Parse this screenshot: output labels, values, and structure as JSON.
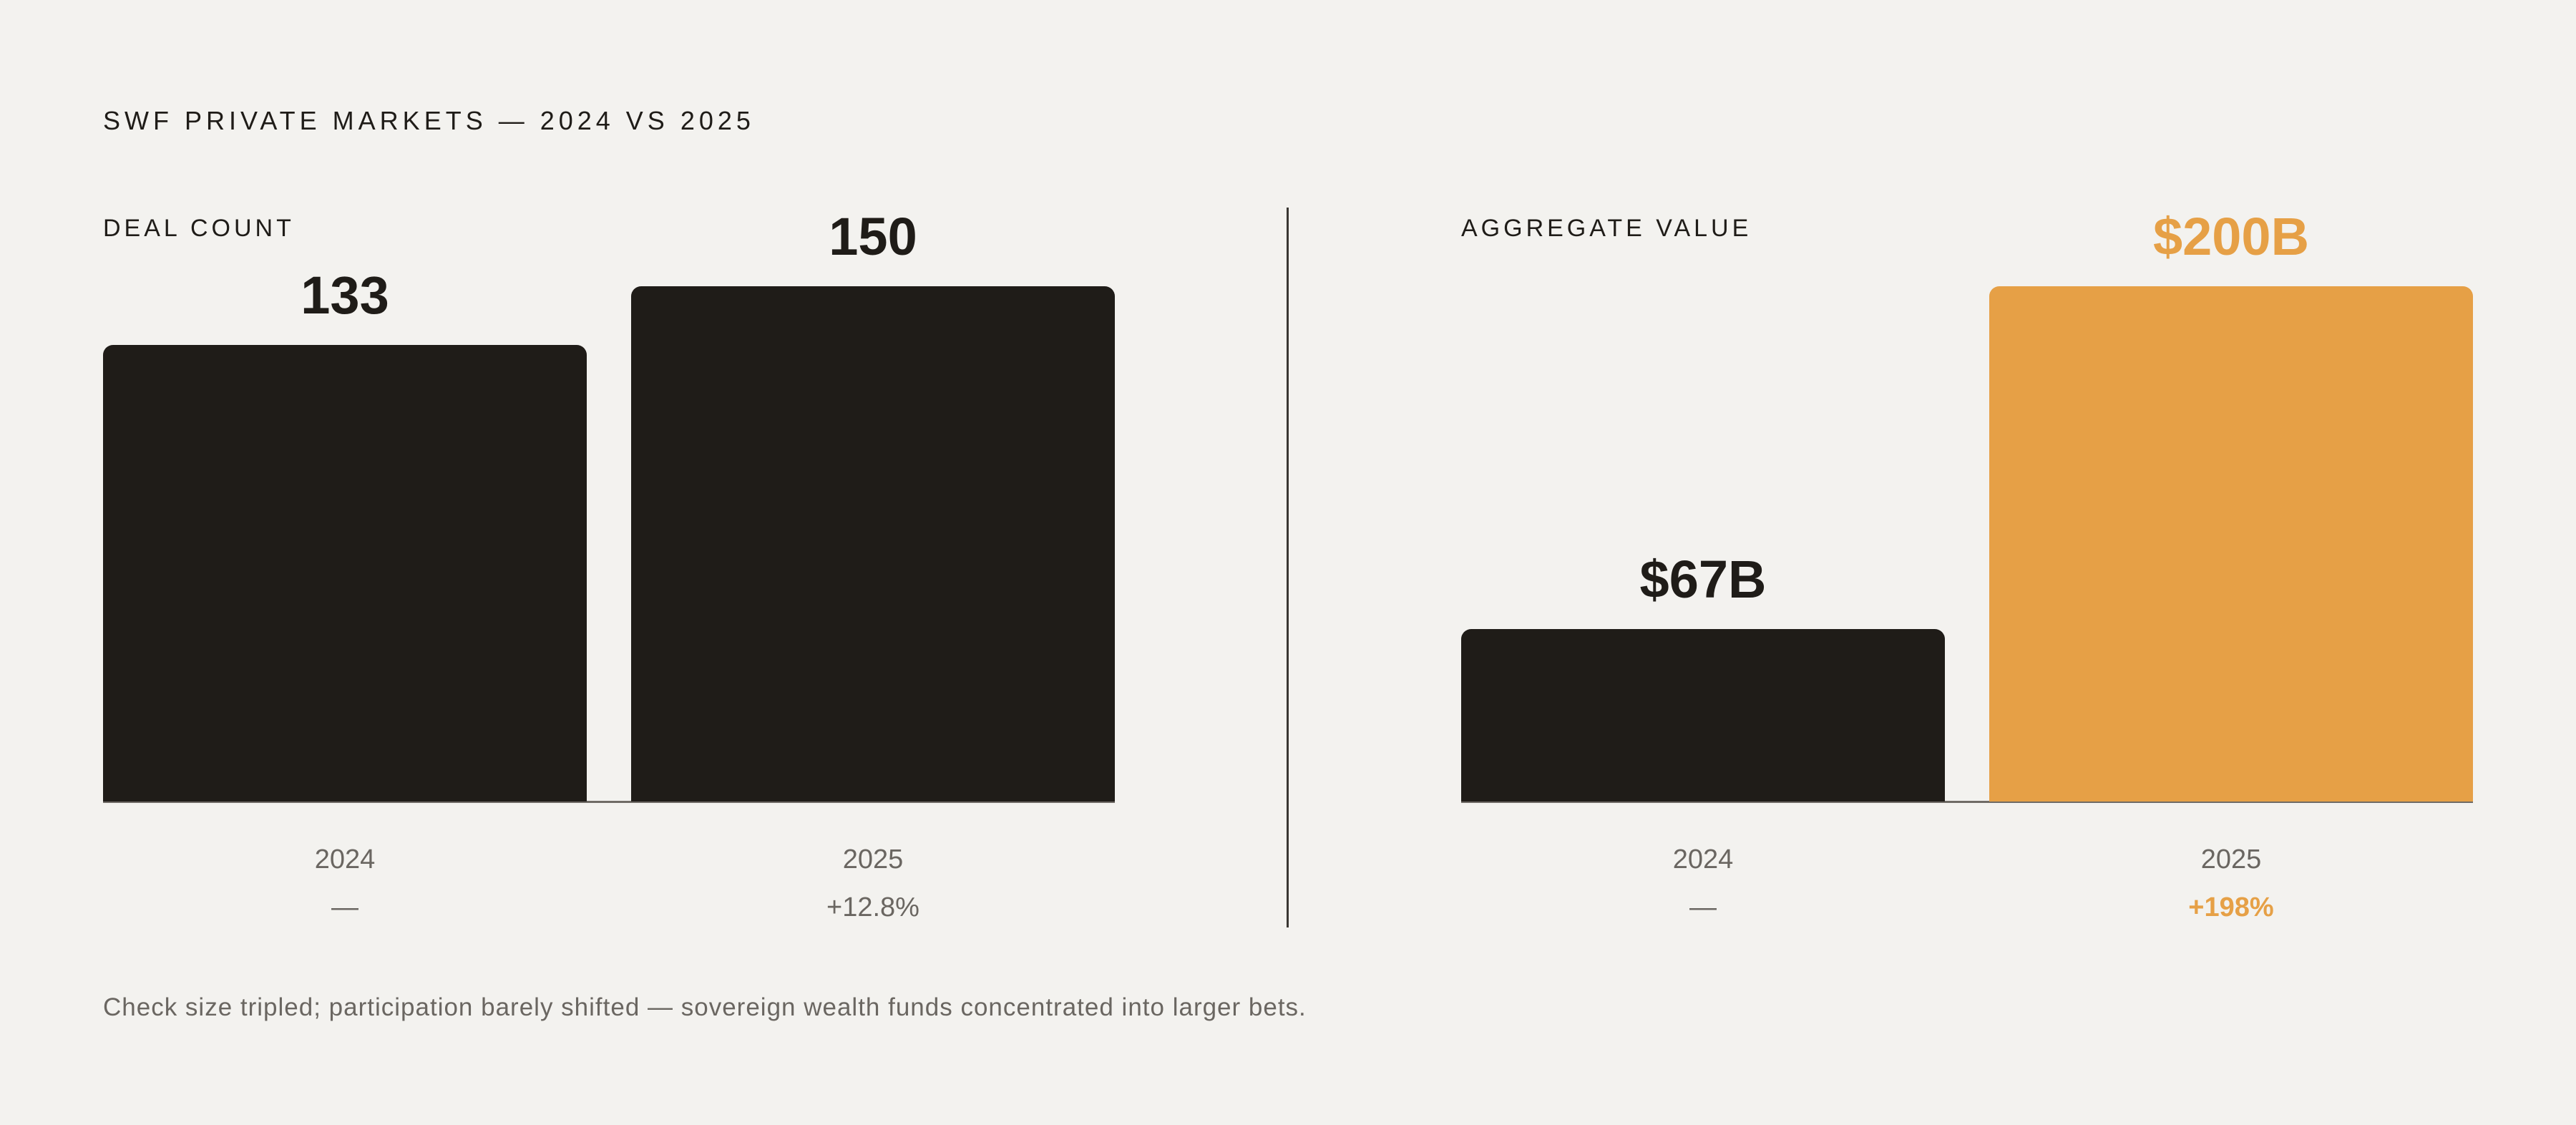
{
  "title": "SWF PRIVATE MARKETS — 2024 VS 2025",
  "footnote": "Check size tripled; participation barely shifted — sovereign wealth funds concentrated into larger bets.",
  "colors": {
    "background": "#f3f2ef",
    "dark": "#1f1c18",
    "accent": "#e6a046",
    "muted": "#6a6661"
  },
  "chart_data": [
    {
      "type": "bar",
      "title": "DEAL COUNT",
      "categories": [
        "2024",
        "2025"
      ],
      "values": [
        133,
        150
      ],
      "value_labels": [
        "133",
        "150"
      ],
      "changes": [
        "—",
        "+12.8%"
      ],
      "bar_colors": [
        "#1f1c18",
        "#1f1c18"
      ],
      "highlight": [
        false,
        false
      ],
      "ylim": [
        0,
        150
      ]
    },
    {
      "type": "bar",
      "title": "AGGREGATE VALUE",
      "categories": [
        "2024",
        "2025"
      ],
      "values": [
        67,
        200
      ],
      "value_labels": [
        "$67B",
        "$200B"
      ],
      "changes": [
        "—",
        "+198%"
      ],
      "bar_colors": [
        "#1f1c18",
        "#e6a046"
      ],
      "highlight": [
        false,
        true
      ],
      "ylim": [
        0,
        200
      ]
    }
  ]
}
